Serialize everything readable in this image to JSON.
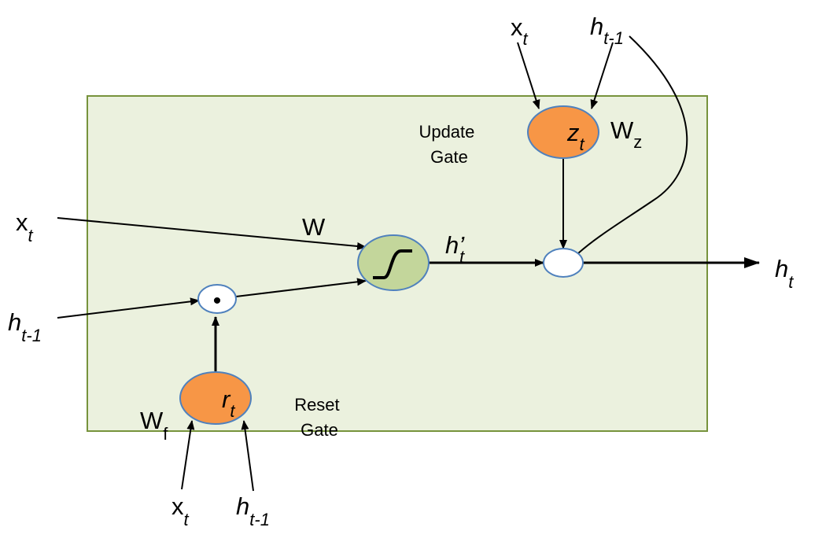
{
  "gate_box": {
    "fill": "#ebf1de",
    "stroke": "#77933c"
  },
  "colors": {
    "gate_orange": "#f79646",
    "gate_orange_stroke": "#4f81bd",
    "candidate_green": "#c3d69b",
    "candidate_stroke": "#4f81bd",
    "op_node": "#ffffff",
    "op_stroke": "#4f81bd"
  },
  "labels": {
    "update_gate": [
      "Update",
      "Gate"
    ],
    "reset_gate": [
      "Reset",
      "Gate"
    ],
    "weight_w": "W",
    "weight_wz": {
      "base": "W",
      "sub": "z"
    },
    "weight_wf": {
      "base": "W",
      "sub": "f"
    },
    "candidate": {
      "base": "h’",
      "sub": "t"
    },
    "output": {
      "base": "h",
      "sub": "t"
    }
  },
  "nodes": {
    "z_gate": {
      "base": "z",
      "sub": "t"
    },
    "r_gate": {
      "base": "r",
      "sub": "t"
    },
    "candidate_icon": "tanh-curve-icon",
    "reset_mult": "•"
  },
  "inputs": {
    "left_x": {
      "base": "x",
      "sub": "t"
    },
    "left_h": {
      "base": "h",
      "sub": "t-1"
    },
    "top_x": {
      "base": "x",
      "sub": "t"
    },
    "top_h": {
      "base": "h",
      "sub": "t-1"
    },
    "bottom_x": {
      "base": "x",
      "sub": "t"
    },
    "bottom_h": {
      "base": "h",
      "sub": "t-1"
    }
  }
}
